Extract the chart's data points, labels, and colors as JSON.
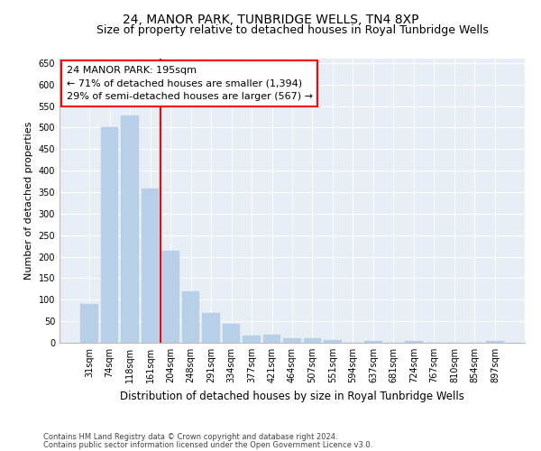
{
  "title": "24, MANOR PARK, TUNBRIDGE WELLS, TN4 8XP",
  "subtitle": "Size of property relative to detached houses in Royal Tunbridge Wells",
  "xlabel": "Distribution of detached houses by size in Royal Tunbridge Wells",
  "ylabel": "Number of detached properties",
  "footer_line1": "Contains HM Land Registry data © Crown copyright and database right 2024.",
  "footer_line2": "Contains public sector information licensed under the Open Government Licence v3.0.",
  "bar_labels": [
    "31sqm",
    "74sqm",
    "118sqm",
    "161sqm",
    "204sqm",
    "248sqm",
    "291sqm",
    "334sqm",
    "377sqm",
    "421sqm",
    "464sqm",
    "507sqm",
    "551sqm",
    "594sqm",
    "637sqm",
    "681sqm",
    "724sqm",
    "767sqm",
    "810sqm",
    "854sqm",
    "897sqm"
  ],
  "bar_values": [
    90,
    500,
    527,
    358,
    213,
    120,
    70,
    44,
    16,
    18,
    10,
    10,
    6,
    0,
    5,
    0,
    5,
    0,
    0,
    0,
    5
  ],
  "bar_color": "#b8cfe8",
  "bar_edgecolor": "#b8cfe8",
  "vline_color": "red",
  "vline_pos": 3.5,
  "annotation_text": "24 MANOR PARK: 195sqm\n← 71% of detached houses are smaller (1,394)\n29% of semi-detached houses are larger (567) →",
  "annotation_box_facecolor": "white",
  "annotation_box_edgecolor": "red",
  "ylim": [
    0,
    660
  ],
  "yticks": [
    0,
    50,
    100,
    150,
    200,
    250,
    300,
    350,
    400,
    450,
    500,
    550,
    600,
    650
  ],
  "plot_bg_color": "#e8eef5",
  "title_fontsize": 10,
  "subtitle_fontsize": 9,
  "ylabel_fontsize": 8,
  "xlabel_fontsize": 8.5,
  "tick_fontsize": 7,
  "annotation_fontsize": 8,
  "footer_fontsize": 6,
  "footer_color": "#444444"
}
